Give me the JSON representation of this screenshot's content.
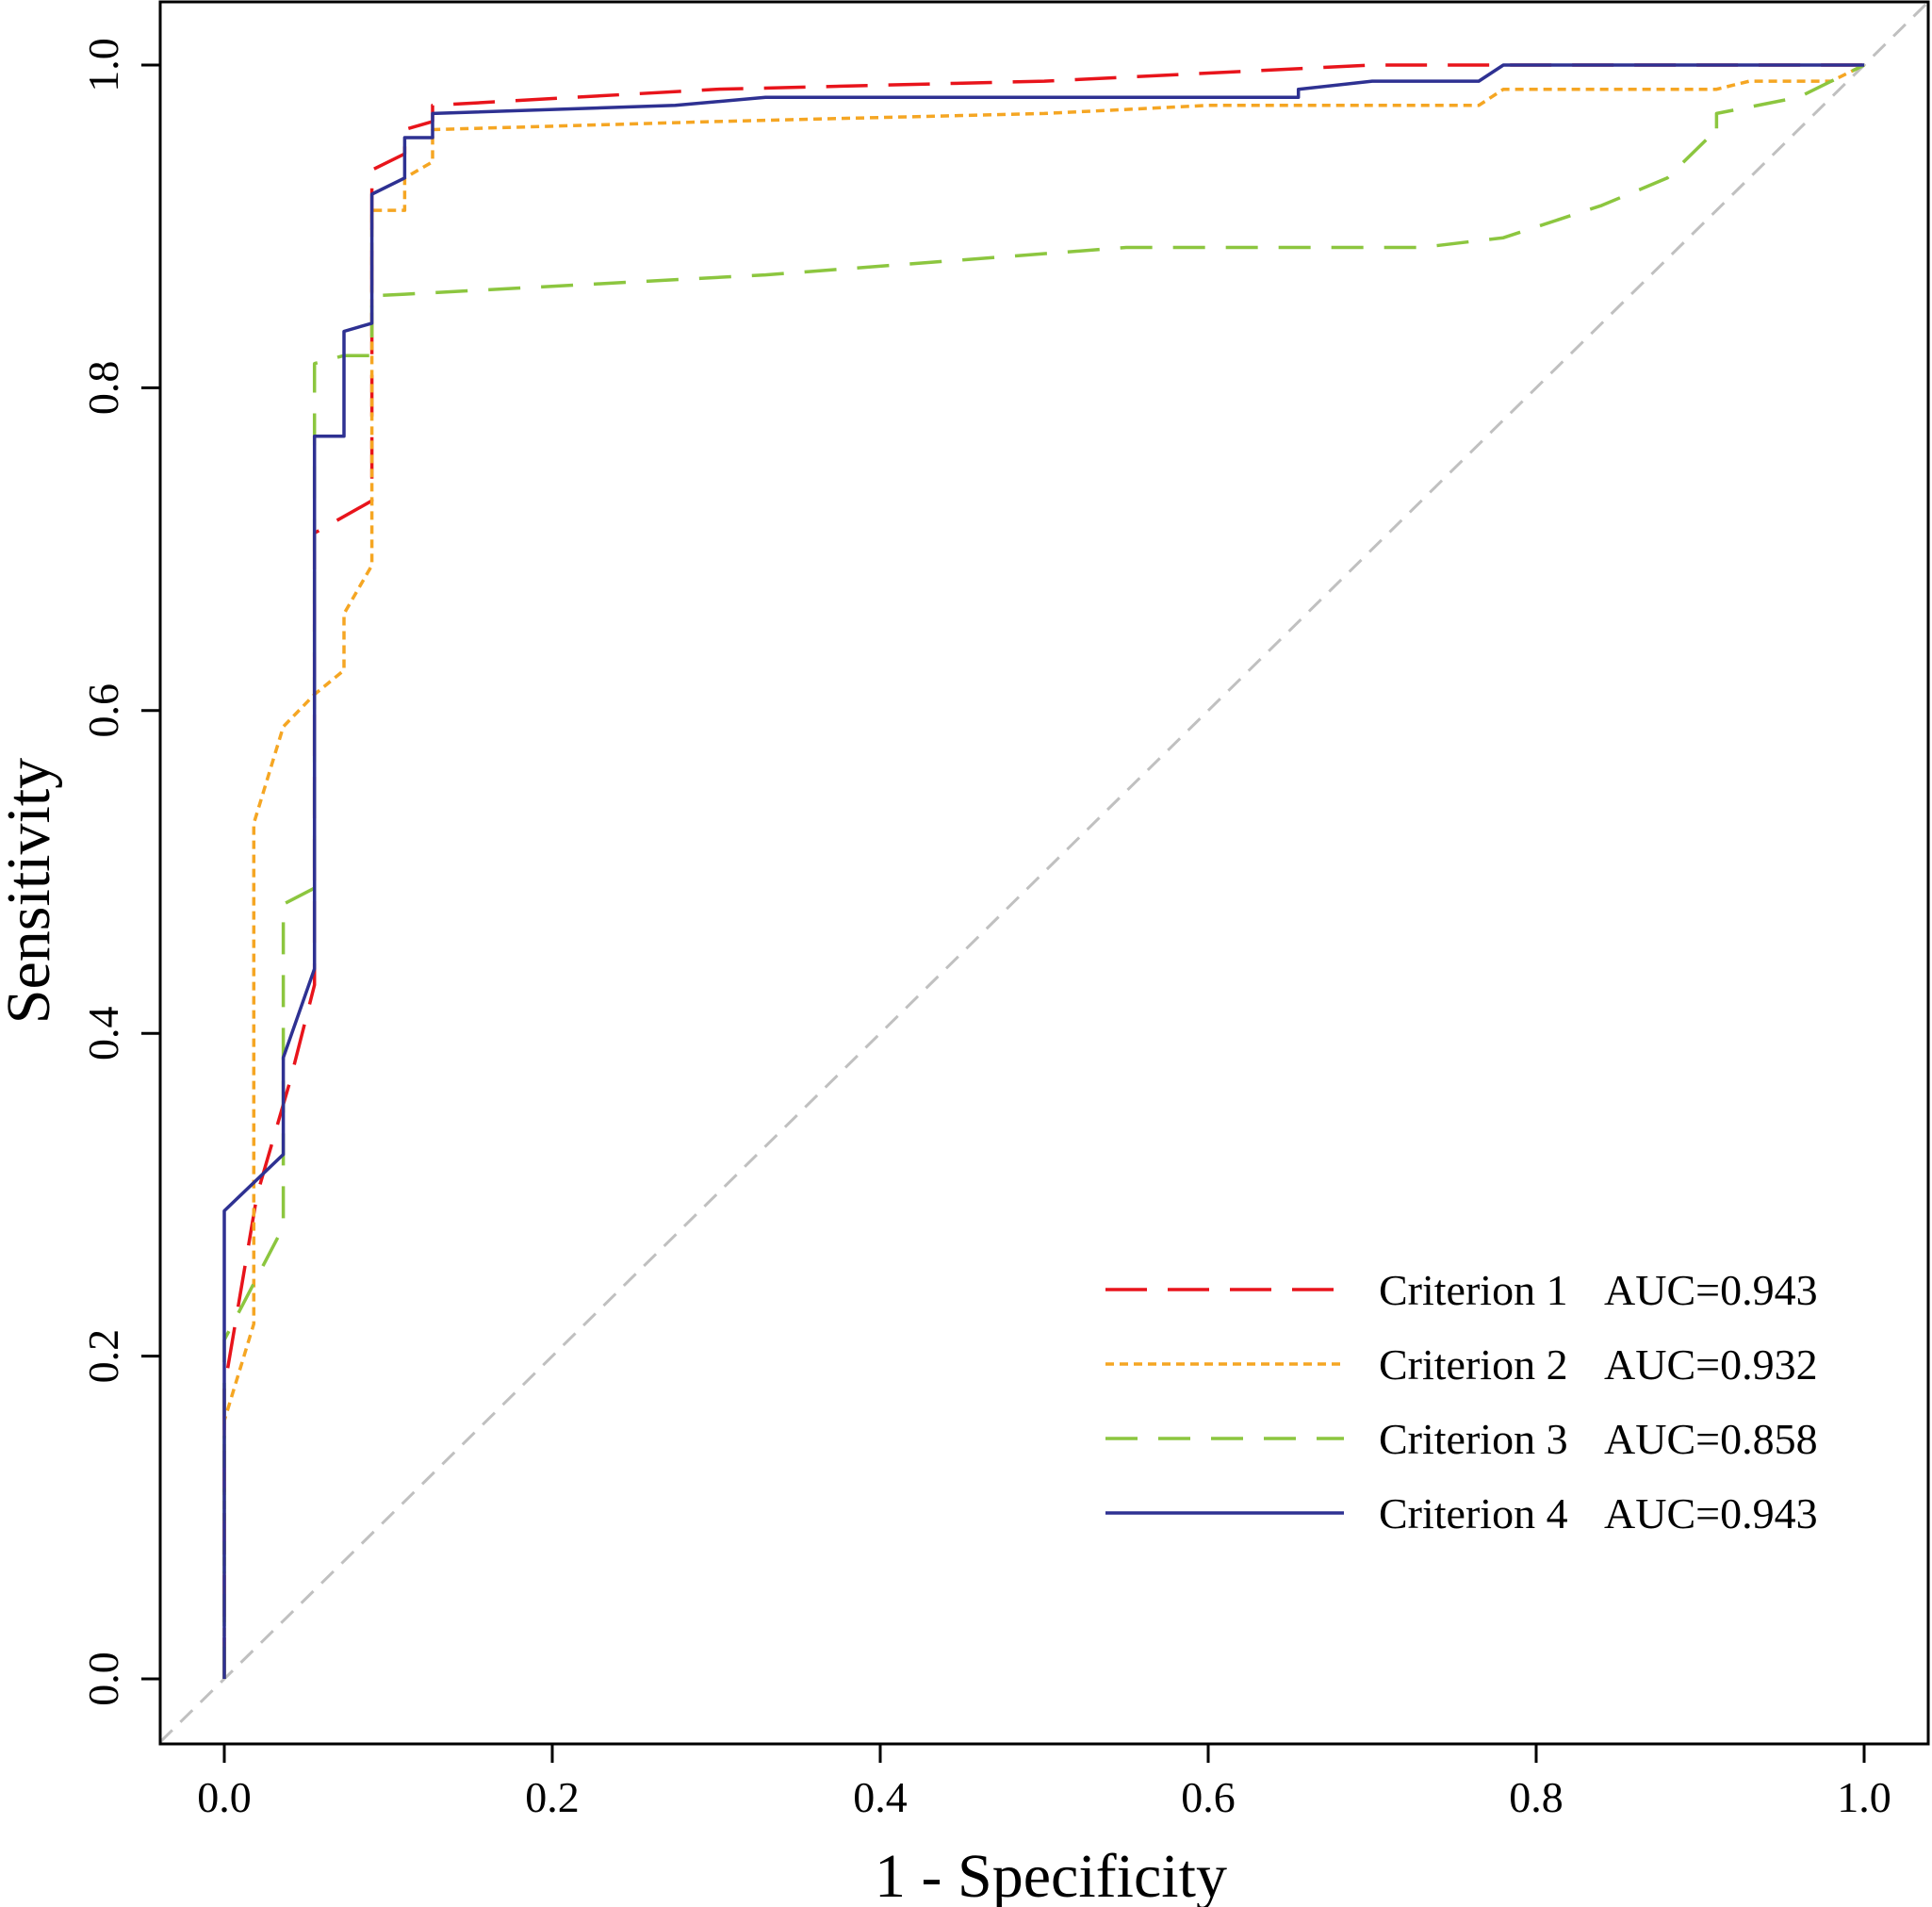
{
  "chart_data": {
    "type": "line",
    "title": "",
    "xlabel": "1 - Specificity",
    "ylabel": "Sensitivity",
    "xlim": [
      -0.04,
      1.04
    ],
    "ylim": [
      -0.035,
      1.035
    ],
    "xticks": [
      0.0,
      0.2,
      0.4,
      0.6,
      0.8,
      1.0
    ],
    "yticks": [
      0.0,
      0.2,
      0.4,
      0.6,
      0.8,
      1.0
    ],
    "xtick_labels": [
      "0.0",
      "0.2",
      "0.4",
      "0.6",
      "0.8",
      "1.0"
    ],
    "ytick_labels": [
      "0.0",
      "0.2",
      "0.4",
      "0.6",
      "0.8",
      "1.0"
    ],
    "grid": false,
    "legend_position": "bottom-right",
    "reference_line": {
      "x": [
        0,
        1
      ],
      "y": [
        0,
        1
      ],
      "color": "#c0c0c0",
      "style": "dashed"
    },
    "series": [
      {
        "name": "Criterion 1",
        "auc_label": "AUC=0.943",
        "color": "#e8141b",
        "style": "longdash",
        "x": [
          0,
          0,
          0.01,
          0.02,
          0.04,
          0.055,
          0.055,
          0.055,
          0.09,
          0.09,
          0.09,
          0.11,
          0.11,
          0.127,
          0.127,
          0.3,
          0.5,
          0.7,
          0.78,
          1.0
        ],
        "y": [
          0,
          0.18,
          0.24,
          0.3,
          0.37,
          0.43,
          0.63,
          0.71,
          0.73,
          0.905,
          0.935,
          0.945,
          0.96,
          0.965,
          0.975,
          0.985,
          0.99,
          1.0,
          1.0,
          1.0
        ]
      },
      {
        "name": "Criterion 2",
        "auc_label": "AUC=0.932",
        "color": "#f5a623",
        "style": "dotted",
        "x": [
          0,
          0,
          0.018,
          0.018,
          0.036,
          0.055,
          0.073,
          0.073,
          0.09,
          0.09,
          0.09,
          0.11,
          0.11,
          0.127,
          0.127,
          0.3,
          0.5,
          0.6,
          0.765,
          0.78,
          0.91,
          0.93,
          0.98,
          1.0
        ],
        "y": [
          0,
          0.16,
          0.22,
          0.53,
          0.59,
          0.61,
          0.625,
          0.66,
          0.69,
          0.73,
          0.91,
          0.91,
          0.93,
          0.94,
          0.96,
          0.965,
          0.97,
          0.975,
          0.975,
          0.985,
          0.985,
          0.99,
          0.99,
          1.0
        ]
      },
      {
        "name": "Criterion 3",
        "auc_label": "AUC=0.858",
        "color": "#8cc63f",
        "style": "dashed",
        "x": [
          0,
          0,
          0.036,
          0.036,
          0.036,
          0.055,
          0.055,
          0.055,
          0.073,
          0.09,
          0.09,
          0.11,
          0.33,
          0.55,
          0.73,
          0.78,
          0.84,
          0.88,
          0.905,
          0.91,
          0.91,
          0.96,
          0.98,
          0.98,
          1.0
        ],
        "y": [
          0,
          0.21,
          0.28,
          0.33,
          0.48,
          0.49,
          0.81,
          0.815,
          0.82,
          0.82,
          0.857,
          0.858,
          0.87,
          0.887,
          0.887,
          0.893,
          0.913,
          0.93,
          0.955,
          0.955,
          0.97,
          0.98,
          0.99,
          0.99,
          1.0
        ]
      },
      {
        "name": "Criterion 4",
        "auc_label": "AUC=0.943",
        "color": "#2e3192",
        "style": "solid",
        "x": [
          0,
          0,
          0.036,
          0.036,
          0.055,
          0.055,
          0.055,
          0.073,
          0.073,
          0.09,
          0.09,
          0.11,
          0.11,
          0.127,
          0.127,
          0.275,
          0.33,
          0.655,
          0.655,
          0.7,
          0.765,
          0.78,
          1.0
        ],
        "y": [
          0,
          0.29,
          0.325,
          0.385,
          0.44,
          0.75,
          0.77,
          0.77,
          0.835,
          0.84,
          0.92,
          0.93,
          0.955,
          0.955,
          0.97,
          0.975,
          0.98,
          0.98,
          0.985,
          0.99,
          0.99,
          1.0,
          1.0
        ]
      }
    ]
  }
}
